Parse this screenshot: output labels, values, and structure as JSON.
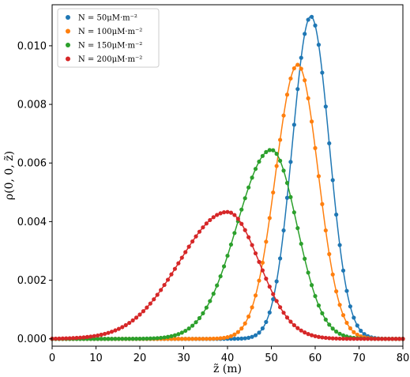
{
  "chart_data": {
    "type": "line",
    "xlabel": "z̃ (m)",
    "ylabel": "ρ(0, 0, z̃)",
    "xlim": [
      0,
      80
    ],
    "ylim": [
      -0.00025,
      0.0114
    ],
    "x_ticks": [
      0,
      10,
      20,
      30,
      40,
      50,
      60,
      70,
      80
    ],
    "x_tick_labels": [
      "0",
      "10",
      "20",
      "30",
      "40",
      "50",
      "60",
      "70",
      "80"
    ],
    "y_ticks": [
      0,
      0.002,
      0.004,
      0.006,
      0.008,
      0.01
    ],
    "y_tick_labels": [
      "0.000",
      "0.002",
      "0.004",
      "0.006",
      "0.008",
      "0.010"
    ],
    "grid": false,
    "legend_position": "top-left",
    "marker": "circle",
    "series": [
      {
        "name": "N = 50μM·m⁻²",
        "color": "#1f77b4",
        "peak_x": 59,
        "peak_y": 0.011,
        "spread_left": 4.2,
        "spread_right": 4.2
      },
      {
        "name": "N = 100μM·m⁻²",
        "color": "#ff7f0e",
        "peak_x": 56,
        "peak_y": 0.00935,
        "spread_left": 5.0,
        "spread_right": 4.7
      },
      {
        "name": "N = 150μM·m⁻²",
        "color": "#2ca02c",
        "peak_x": 50,
        "peak_y": 0.00645,
        "spread_left": 7.8,
        "spread_right": 5.8
      },
      {
        "name": "N = 200μM·m⁻²",
        "color": "#d62728",
        "peak_x": 40,
        "peak_y": 0.00433,
        "spread_left": 11.0,
        "spread_right": 7.2
      }
    ]
  }
}
